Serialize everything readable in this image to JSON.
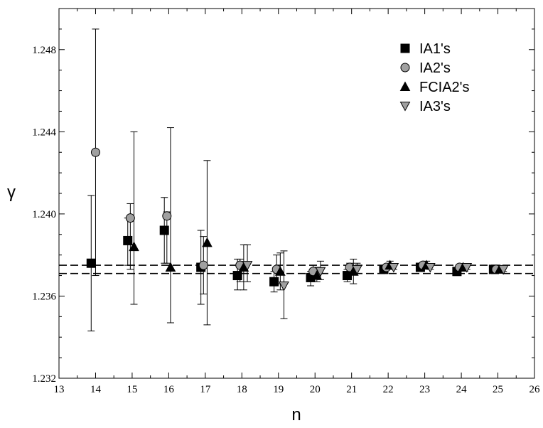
{
  "chart_data": {
    "type": "scatter",
    "title": "",
    "xlabel": "n",
    "ylabel": "γ",
    "xlim": [
      13,
      26
    ],
    "ylim": [
      1.232,
      1.25
    ],
    "xticks": [
      "13",
      "14",
      "15",
      "16",
      "17",
      "18",
      "19",
      "20",
      "21",
      "22",
      "23",
      "24",
      "25",
      "26"
    ],
    "yticks": [
      "1.232",
      "1.236",
      "1.240",
      "1.244",
      "1.248"
    ],
    "grid": false,
    "legend_position": "top-right",
    "reference_lines": [
      1.2375,
      1.2371
    ],
    "series": [
      {
        "name": "IA1's",
        "marker": "square",
        "color": "#000000",
        "points": [
          {
            "x": 13.88,
            "y": 1.2376,
            "err_low": 1.2343,
            "err_high": 1.2409
          },
          {
            "x": 14.88,
            "y": 1.2387,
            "err_low": 1.2375,
            "err_high": 1.2398
          },
          {
            "x": 15.88,
            "y": 1.2392,
            "err_low": 1.2376,
            "err_high": 1.2408
          },
          {
            "x": 16.88,
            "y": 1.2374,
            "err_low": 1.2356,
            "err_high": 1.2392
          },
          {
            "x": 17.88,
            "y": 1.237,
            "err_low": 1.2363,
            "err_high": 1.2378
          },
          {
            "x": 18.88,
            "y": 1.2367,
            "err_low": 1.2362,
            "err_high": 1.2372
          },
          {
            "x": 19.88,
            "y": 1.2369,
            "err_low": 1.2365,
            "err_high": 1.2372
          },
          {
            "x": 20.88,
            "y": 1.237,
            "err_low": 1.2367,
            "err_high": 1.2373
          },
          {
            "x": 21.88,
            "y": 1.2373,
            "err_low": 1.2371,
            "err_high": 1.2375
          },
          {
            "x": 22.88,
            "y": 1.2374,
            "err_low": 1.2373,
            "err_high": 1.2375
          },
          {
            "x": 23.88,
            "y": 1.2372,
            "err_low": 1.237,
            "err_high": 1.2374
          },
          {
            "x": 24.88,
            "y": 1.2373,
            "err_low": 1.2372,
            "err_high": 1.2374
          }
        ]
      },
      {
        "name": "IA2's",
        "marker": "circle",
        "color": "#a0a0a0",
        "points": [
          {
            "x": 14.0,
            "y": 1.243,
            "err_low": 1.237,
            "err_high": 1.249
          },
          {
            "x": 14.95,
            "y": 1.2398,
            "err_low": 1.2373,
            "err_high": 1.2405
          },
          {
            "x": 15.95,
            "y": 1.2399,
            "err_low": 1.2376,
            "err_high": 1.2401
          },
          {
            "x": 16.95,
            "y": 1.2375,
            "err_low": 1.2361,
            "err_high": 1.2389
          },
          {
            "x": 17.95,
            "y": 1.2375,
            "err_low": 1.2367,
            "err_high": 1.2378
          },
          {
            "x": 18.95,
            "y": 1.2373,
            "err_low": 1.2366,
            "err_high": 1.238
          },
          {
            "x": 19.95,
            "y": 1.2372,
            "err_low": 1.2369,
            "err_high": 1.2375
          },
          {
            "x": 20.95,
            "y": 1.2374,
            "err_low": 1.2372,
            "err_high": 1.2376
          },
          {
            "x": 21.95,
            "y": 1.2374,
            "err_low": 1.2373,
            "err_high": 1.2375
          },
          {
            "x": 22.95,
            "y": 1.2375,
            "err_low": 1.2374,
            "err_high": 1.2376
          },
          {
            "x": 23.95,
            "y": 1.2374,
            "err_low": 1.2373,
            "err_high": 1.2375
          },
          {
            "x": 24.95,
            "y": 1.2373,
            "err_low": 1.2372,
            "err_high": 1.2374
          }
        ]
      },
      {
        "name": "FCIA2's",
        "marker": "triangle-up",
        "color": "#000000",
        "points": [
          {
            "x": 15.05,
            "y": 1.2384,
            "err_low": 1.2356,
            "err_high": 1.244
          },
          {
            "x": 16.05,
            "y": 1.2374,
            "err_low": 1.2347,
            "err_high": 1.2442
          },
          {
            "x": 17.05,
            "y": 1.2386,
            "err_low": 1.2346,
            "err_high": 1.2426
          },
          {
            "x": 18.05,
            "y": 1.2374,
            "err_low": 1.2363,
            "err_high": 1.2385
          },
          {
            "x": 19.05,
            "y": 1.2372,
            "err_low": 1.2363,
            "err_high": 1.2381
          },
          {
            "x": 20.05,
            "y": 1.237,
            "err_low": 1.2367,
            "err_high": 1.2374
          },
          {
            "x": 21.05,
            "y": 1.2372,
            "err_low": 1.2366,
            "err_high": 1.2378
          },
          {
            "x": 22.05,
            "y": 1.2375,
            "err_low": 1.2373,
            "err_high": 1.2377
          },
          {
            "x": 23.05,
            "y": 1.2375,
            "err_low": 1.2374,
            "err_high": 1.2377
          },
          {
            "x": 24.05,
            "y": 1.2374,
            "err_low": 1.2373,
            "err_high": 1.2375
          },
          {
            "x": 25.05,
            "y": 1.2373,
            "err_low": 1.2372,
            "err_high": 1.2374
          }
        ]
      },
      {
        "name": "IA3's",
        "marker": "triangle-down",
        "color": "#a0a0a0",
        "points": [
          {
            "x": 18.15,
            "y": 1.2375,
            "err_low": 1.2367,
            "err_high": 1.2385
          },
          {
            "x": 19.15,
            "y": 1.2365,
            "err_low": 1.2349,
            "err_high": 1.2382
          },
          {
            "x": 20.15,
            "y": 1.2372,
            "err_low": 1.2368,
            "err_high": 1.2377
          },
          {
            "x": 21.15,
            "y": 1.2373,
            "err_low": 1.2371,
            "err_high": 1.2376
          },
          {
            "x": 22.15,
            "y": 1.2374,
            "err_low": 1.2373,
            "err_high": 1.2375
          },
          {
            "x": 23.15,
            "y": 1.2374,
            "err_low": 1.2373,
            "err_high": 1.2375
          },
          {
            "x": 24.15,
            "y": 1.2374,
            "err_low": 1.2373,
            "err_high": 1.2375
          },
          {
            "x": 25.15,
            "y": 1.2373,
            "err_low": 1.2372,
            "err_high": 1.2374
          }
        ]
      }
    ]
  }
}
